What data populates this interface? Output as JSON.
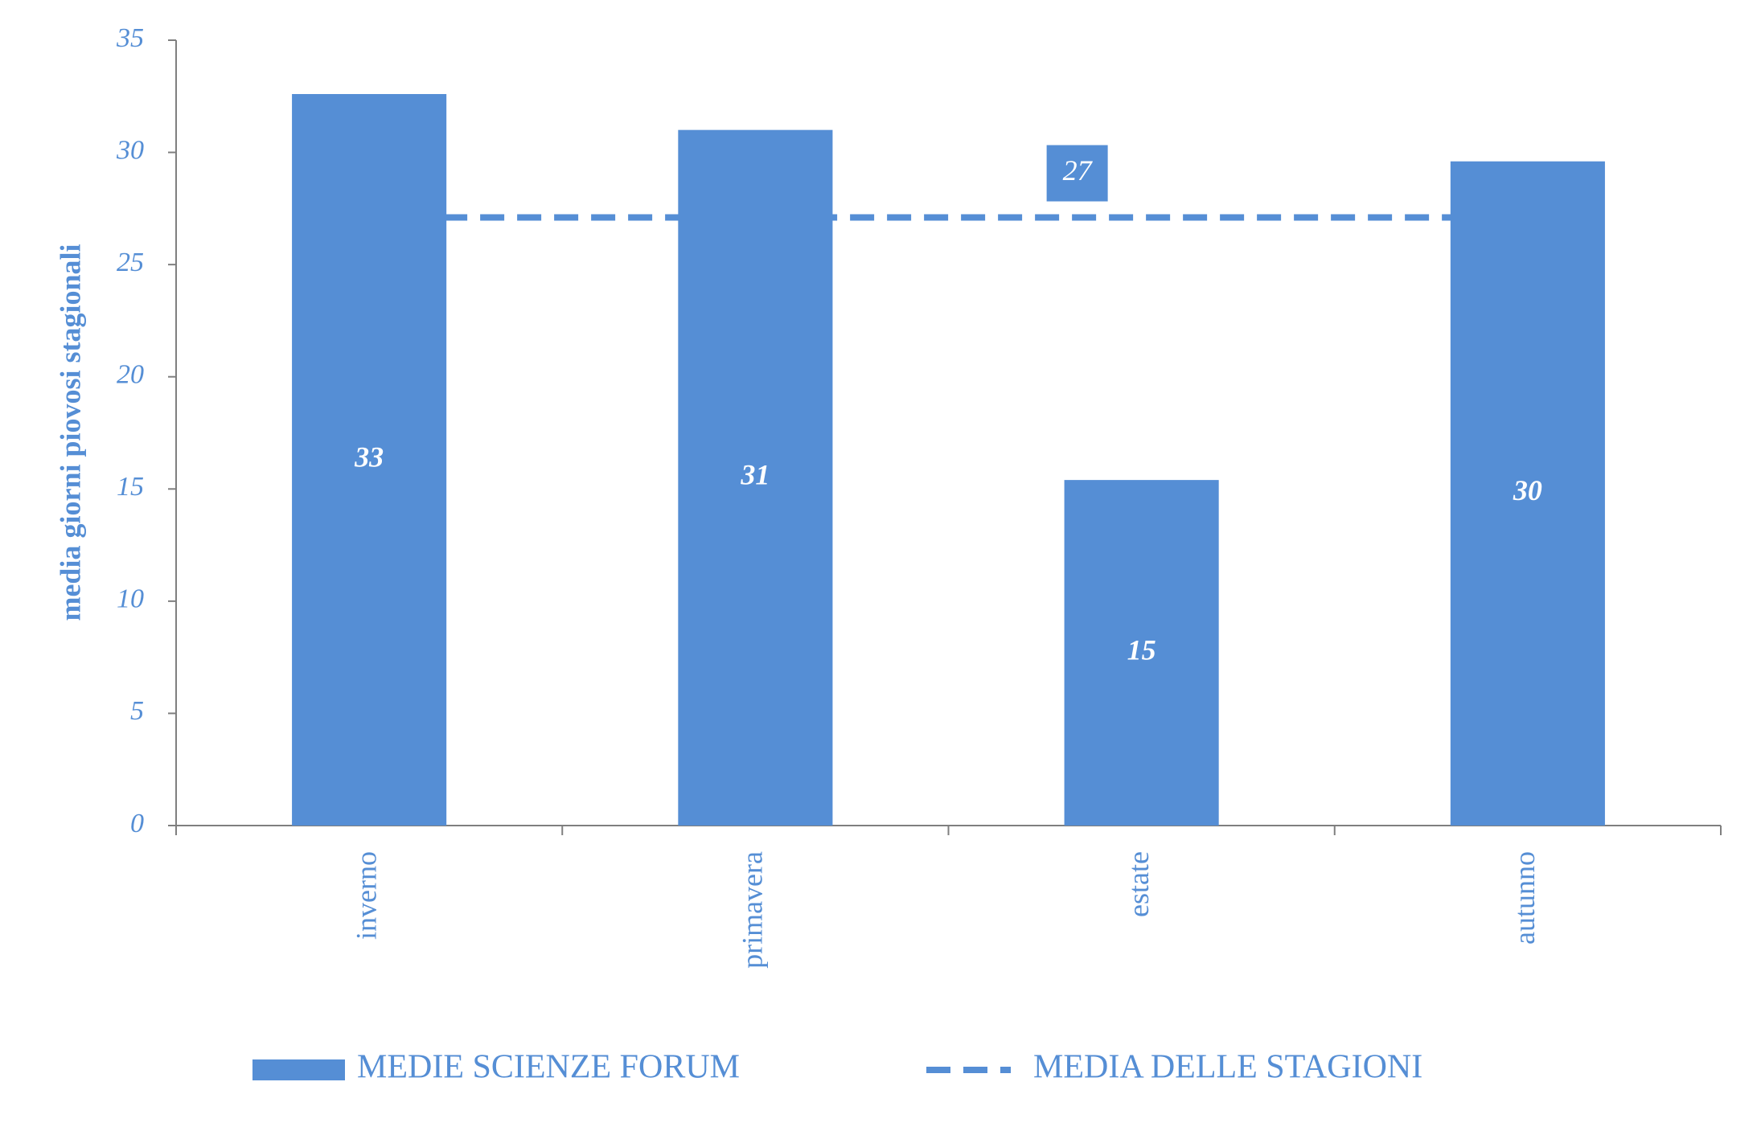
{
  "chart_data": {
    "type": "bar",
    "y_label": "media giorni piovosi stagionali",
    "categories": [
      "inverno",
      "primavera",
      "estate",
      "autunno"
    ],
    "series": [
      {
        "name": "MEDIE SCIENZE FORUM",
        "type": "bar",
        "color": "#558ed5",
        "values": [
          32.6,
          31.0,
          15.4,
          29.6
        ],
        "value_labels": [
          "33",
          "31",
          "15",
          "30"
        ]
      },
      {
        "name": "MEDIA DELLE STAGIONI",
        "type": "line",
        "dashed": true,
        "color": "#558ed5",
        "values": [
          27.1,
          27.1,
          27.1,
          27.1
        ],
        "value_labels": [
          null,
          null,
          "27",
          null
        ]
      }
    ],
    "ylim": [
      0,
      35
    ],
    "yticks": [
      0,
      5,
      10,
      15,
      20,
      25,
      30,
      35
    ],
    "grid": false,
    "legend": "bottom"
  }
}
